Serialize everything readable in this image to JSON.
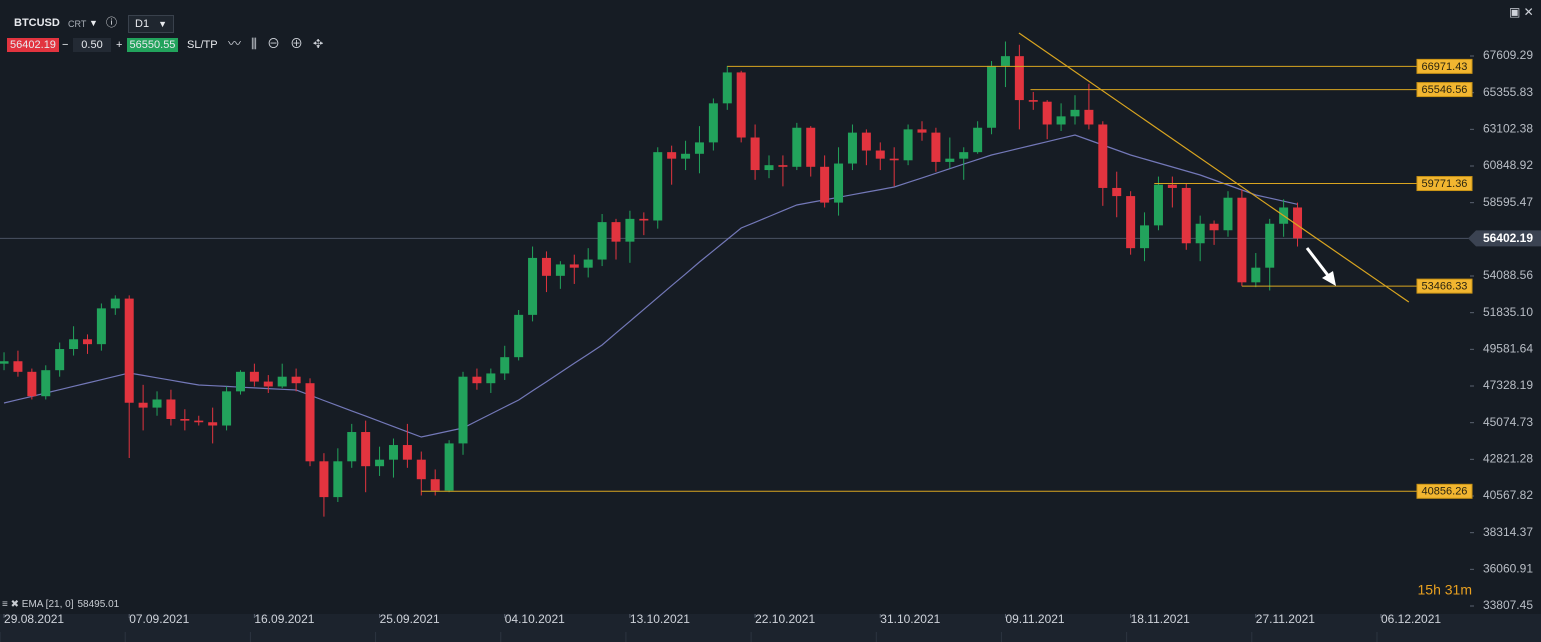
{
  "toolbar": {
    "symbol": "BTCUSD",
    "mode": "CRT",
    "timeframe": "D1",
    "bid": "56402.19",
    "minus": "−",
    "lot": "0.50",
    "plus": "+",
    "ask": "56550.55",
    "sltp": "SL/TP"
  },
  "timer": "15h 31m",
  "chart_data": {
    "type": "candlestick",
    "open": [
      48700,
      48850,
      48200,
      46700,
      48300,
      49600,
      50200,
      49900,
      52100,
      52700,
      46300,
      46000,
      46500,
      45300,
      45200,
      45100,
      44900,
      47000,
      48200,
      47600,
      47300,
      47900,
      47500,
      42700,
      40500,
      42700,
      44500,
      42400,
      42800,
      43700,
      42800,
      41600,
      40900,
      43800,
      47900,
      47500,
      48100,
      49100,
      51700,
      55200,
      54100,
      54800,
      54600,
      55100,
      57400,
      56200,
      57600,
      57500,
      61700,
      61300,
      61600,
      62300,
      64700,
      66600,
      62600,
      60600,
      60900,
      60800,
      63200,
      60800,
      58600,
      61000,
      62900,
      61800,
      61300,
      61200,
      63100,
      62900,
      61100,
      61300,
      61700,
      63200,
      67000,
      67600,
      64900,
      64800,
      63400,
      63900,
      64300,
      63400,
      59500,
      59000,
      55800,
      57200,
      59700,
      59500,
      56100,
      57300,
      56900,
      58900,
      53700,
      54600,
      57300,
      58300
    ],
    "high": [
      49400,
      49500,
      48400,
      48600,
      50000,
      51000,
      50500,
      52400,
      52900,
      52900,
      47400,
      47000,
      47100,
      45900,
      45500,
      46000,
      47300,
      48300,
      48700,
      48000,
      48700,
      48400,
      47800,
      43200,
      43500,
      45000,
      45200,
      43600,
      44100,
      45000,
      43300,
      42200,
      44000,
      48200,
      48400,
      48400,
      49800,
      52000,
      55900,
      55600,
      55000,
      55400,
      55800,
      57900,
      57600,
      58100,
      58000,
      62000,
      62100,
      62400,
      63300,
      65000,
      67000,
      66700,
      63400,
      61500,
      61500,
      63500,
      63300,
      61500,
      62000,
      63400,
      63100,
      62300,
      62000,
      63400,
      63600,
      63200,
      62600,
      62000,
      63600,
      67300,
      68500,
      68300,
      65400,
      64900,
      64700,
      65200,
      65900,
      63600,
      60500,
      59300,
      58000,
      60200,
      60200,
      59800,
      57800,
      57500,
      59300,
      59400,
      55500,
      57600,
      58800,
      58600
    ],
    "low": [
      48300,
      47900,
      46500,
      46500,
      47900,
      49200,
      49300,
      49500,
      51700,
      42900,
      44600,
      45500,
      44900,
      44600,
      44900,
      43800,
      44600,
      46800,
      47300,
      46900,
      47200,
      47000,
      42400,
      39300,
      40200,
      42300,
      40800,
      41800,
      41700,
      42300,
      40600,
      40600,
      40800,
      43100,
      47100,
      46900,
      47700,
      48900,
      51300,
      53100,
      53300,
      53600,
      54000,
      54700,
      55100,
      54900,
      56600,
      57000,
      59700,
      60600,
      60400,
      61800,
      64300,
      62300,
      60000,
      60100,
      59600,
      60600,
      60200,
      58300,
      57800,
      60600,
      60900,
      60600,
      59600,
      60900,
      62400,
      60500,
      60700,
      60000,
      61600,
      62800,
      65700,
      63100,
      64300,
      62500,
      63000,
      63400,
      63100,
      58400,
      57700,
      55400,
      55000,
      56900,
      58300,
      55700,
      55000,
      56000,
      56500,
      53466.33,
      53400,
      53200,
      56500,
      55900
    ],
    "close": [
      48850,
      48200,
      46700,
      48300,
      49600,
      50200,
      49900,
      52100,
      52700,
      46300,
      46000,
      46500,
      45300,
      45200,
      45100,
      44900,
      47000,
      48200,
      47600,
      47300,
      47900,
      47500,
      42700,
      40500,
      42700,
      44500,
      42400,
      42800,
      43700,
      42800,
      41600,
      40900,
      43800,
      47900,
      47500,
      48100,
      49100,
      51700,
      55200,
      54100,
      54800,
      54600,
      55100,
      57400,
      56200,
      57600,
      57500,
      61700,
      61300,
      61600,
      62300,
      64700,
      66600,
      62600,
      60600,
      60900,
      60800,
      63200,
      60800,
      58600,
      61000,
      62900,
      61800,
      61300,
      61200,
      63100,
      62900,
      61100,
      61300,
      61700,
      63200,
      67000,
      67600,
      64900,
      64800,
      63400,
      63900,
      64300,
      63400,
      59500,
      59000,
      55800,
      57200,
      59700,
      59500,
      56100,
      57300,
      56900,
      58900,
      53700,
      54600,
      57300,
      58300,
      56402.19
    ],
    "up_color": "#22a35c",
    "down_color": "#e2343f",
    "ema": {
      "label": "EMA [21, 0]",
      "color": "#7378b8",
      "values": [
        46282,
        46487,
        46692,
        46897,
        47102,
        47307,
        47512,
        47717,
        47922,
        48127,
        47980,
        47832,
        47684,
        47537,
        47389,
        47345,
        47301,
        47257,
        47214,
        47170,
        47126,
        47082,
        46761,
        46440,
        46119,
        45798,
        45477,
        45156,
        44835,
        44514,
        44193,
        44377,
        44562,
        44746,
        45176,
        45606,
        46037,
        46467,
        47031,
        47594,
        48158,
        48721,
        49285,
        49848,
        50577,
        51305,
        52034,
        52762,
        53491,
        54220,
        54948,
        55645,
        56341,
        57038,
        57392,
        57745,
        58099,
        58452,
        58610,
        58768,
        58926,
        59084,
        59242,
        59400,
        59558,
        59839,
        60120,
        60401,
        60682,
        60963,
        61244,
        61525,
        61730,
        61935,
        62140,
        62344,
        62549,
        62754,
        62447,
        62139,
        61832,
        61525,
        61279,
        61033,
        60788,
        60542,
        60296,
        59989,
        59681,
        59374,
        59066,
        58876,
        58686,
        58495.01
      ]
    },
    "current_price": 56402.19,
    "levels": [
      {
        "value": 66971.43,
        "start": 52
      },
      {
        "value": 65546.56,
        "start": 73.8
      },
      {
        "value": 59771.36,
        "start": 82.7
      },
      {
        "value": 53466.33,
        "start": 89
      },
      {
        "value": 40856.26,
        "start": 30
      }
    ],
    "level_color": "#d9a520",
    "trendlines": [
      {
        "from": [
          72.97,
          69020
        ],
        "to": [
          101,
          52490
        ]
      }
    ],
    "xlim": [
      -0.29,
      105.4
    ],
    "xticks": [
      {
        "value": 0,
        "label": "29.08.2021"
      },
      {
        "value": 9,
        "label": "07.09.2021"
      },
      {
        "value": 18,
        "label": "16.09.2021"
      },
      {
        "value": 27,
        "label": "25.09.2021"
      },
      {
        "value": 36,
        "label": "04.10.2021"
      },
      {
        "value": 45,
        "label": "13.10.2021"
      },
      {
        "value": 54,
        "label": "22.10.2021"
      },
      {
        "value": 63,
        "label": "31.10.2021"
      },
      {
        "value": 72,
        "label": "09.11.2021"
      },
      {
        "value": 81,
        "label": "18.11.2021"
      },
      {
        "value": 90,
        "label": "27.11.2021"
      },
      {
        "value": 99,
        "label": "06.12.2021"
      }
    ],
    "ylim": [
      33316,
      71051
    ],
    "yticks": [
      67609.29,
      65355.83,
      63102.38,
      60848.92,
      58595.47,
      54088.56,
      {
        "value": 51835.1,
        "label": "51835.10"
      },
      49581.64,
      47328.19,
      45074.73,
      42821.28,
      40567.82,
      38314.37,
      36060.91,
      33807.45
    ]
  }
}
